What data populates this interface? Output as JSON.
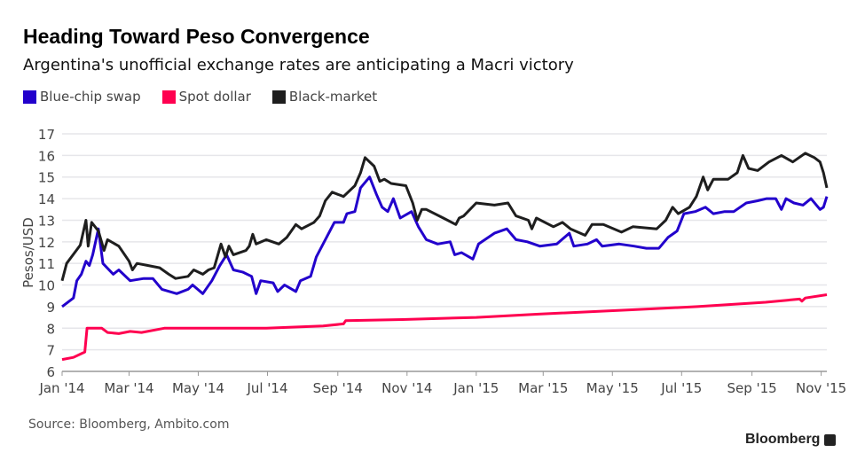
{
  "chart_data": {
    "type": "line",
    "title": "Heading Toward Peso Convergence",
    "subtitle": "Argentina's unofficial exchange rates are anticipating a Macri victory",
    "ylabel": "Pesos/USD",
    "xlabel": "",
    "x_unit": "days since Jan 1 2014",
    "ylim": [
      6,
      17
    ],
    "xlim": [
      0,
      674
    ],
    "grid": true,
    "legend_position": "top-left",
    "yticks": [
      6,
      7,
      8,
      9,
      10,
      11,
      12,
      13,
      14,
      15,
      16,
      17
    ],
    "xticks": [
      {
        "day": 0,
        "label": "Jan '14"
      },
      {
        "day": 59,
        "label": "Mar '14"
      },
      {
        "day": 120,
        "label": "May '14"
      },
      {
        "day": 181,
        "label": "Jul '14"
      },
      {
        "day": 243,
        "label": "Sep '14"
      },
      {
        "day": 304,
        "label": "Nov '14"
      },
      {
        "day": 365,
        "label": "Jan '15"
      },
      {
        "day": 424,
        "label": "Mar '15"
      },
      {
        "day": 485,
        "label": "May '15"
      },
      {
        "day": 546,
        "label": "Jul '15"
      },
      {
        "day": 608,
        "label": "Sep '15"
      },
      {
        "day": 669,
        "label": "Nov '15"
      }
    ],
    "series": [
      {
        "name": "Blue-chip swap",
        "color": "#2200cc",
        "points": [
          [
            0,
            9.0
          ],
          [
            10,
            9.4
          ],
          [
            13,
            10.2
          ],
          [
            17,
            10.5
          ],
          [
            21,
            11.1
          ],
          [
            24,
            10.9
          ],
          [
            27,
            11.4
          ],
          [
            32,
            12.6
          ],
          [
            36,
            11.0
          ],
          [
            45,
            10.5
          ],
          [
            50,
            10.7
          ],
          [
            60,
            10.2
          ],
          [
            72,
            10.3
          ],
          [
            80,
            10.3
          ],
          [
            88,
            9.8
          ],
          [
            101,
            9.6
          ],
          [
            111,
            9.8
          ],
          [
            115,
            10.0
          ],
          [
            124,
            9.6
          ],
          [
            132,
            10.2
          ],
          [
            139,
            10.9
          ],
          [
            145,
            11.4
          ],
          [
            151,
            10.7
          ],
          [
            159,
            10.6
          ],
          [
            167,
            10.4
          ],
          [
            171,
            9.6
          ],
          [
            175,
            10.2
          ],
          [
            186,
            10.1
          ],
          [
            190,
            9.7
          ],
          [
            196,
            10.0
          ],
          [
            206,
            9.7
          ],
          [
            210,
            10.2
          ],
          [
            219,
            10.4
          ],
          [
            224,
            11.3
          ],
          [
            232,
            12.1
          ],
          [
            240,
            12.9
          ],
          [
            248,
            12.9
          ],
          [
            251,
            13.3
          ],
          [
            258,
            13.4
          ],
          [
            263,
            14.5
          ],
          [
            271,
            15.0
          ],
          [
            277,
            14.2
          ],
          [
            282,
            13.6
          ],
          [
            287,
            13.4
          ],
          [
            292,
            14.0
          ],
          [
            298,
            13.1
          ],
          [
            308,
            13.4
          ],
          [
            314,
            12.7
          ],
          [
            321,
            12.1
          ],
          [
            331,
            11.9
          ],
          [
            342,
            12.0
          ],
          [
            346,
            11.4
          ],
          [
            352,
            11.5
          ],
          [
            362,
            11.2
          ],
          [
            367,
            11.9
          ],
          [
            381,
            12.4
          ],
          [
            392,
            12.6
          ],
          [
            400,
            12.1
          ],
          [
            410,
            12.0
          ],
          [
            421,
            11.8
          ],
          [
            436,
            11.9
          ],
          [
            447,
            12.4
          ],
          [
            451,
            11.8
          ],
          [
            463,
            11.9
          ],
          [
            471,
            12.1
          ],
          [
            476,
            11.8
          ],
          [
            491,
            11.9
          ],
          [
            504,
            11.8
          ],
          [
            515,
            11.7
          ],
          [
            526,
            11.7
          ],
          [
            534,
            12.2
          ],
          [
            542,
            12.5
          ],
          [
            548,
            13.3
          ],
          [
            558,
            13.4
          ],
          [
            567,
            13.6
          ],
          [
            574,
            13.3
          ],
          [
            584,
            13.4
          ],
          [
            592,
            13.4
          ],
          [
            603,
            13.8
          ],
          [
            613,
            13.9
          ],
          [
            621,
            14.0
          ],
          [
            629,
            14.0
          ],
          [
            634,
            13.5
          ],
          [
            638,
            14.0
          ],
          [
            645,
            13.8
          ],
          [
            653,
            13.7
          ],
          [
            660,
            14.0
          ],
          [
            668,
            13.5
          ],
          [
            671,
            13.6
          ],
          [
            674,
            14.1
          ]
        ]
      },
      {
        "name": "Spot dollar",
        "color": "#ff0050",
        "points": [
          [
            0,
            6.55
          ],
          [
            10,
            6.65
          ],
          [
            20,
            6.9
          ],
          [
            22,
            8.0
          ],
          [
            35,
            8.0
          ],
          [
            40,
            7.8
          ],
          [
            50,
            7.75
          ],
          [
            60,
            7.85
          ],
          [
            70,
            7.8
          ],
          [
            90,
            8.0
          ],
          [
            180,
            8.0
          ],
          [
            230,
            8.1
          ],
          [
            248,
            8.2
          ],
          [
            250,
            8.35
          ],
          [
            300,
            8.4
          ],
          [
            365,
            8.5
          ],
          [
            420,
            8.65
          ],
          [
            500,
            8.85
          ],
          [
            560,
            9.0
          ],
          [
            620,
            9.2
          ],
          [
            650,
            9.35
          ],
          [
            652,
            9.25
          ],
          [
            655,
            9.4
          ],
          [
            674,
            9.55
          ]
        ]
      },
      {
        "name": "Black-market",
        "color": "#1e1e1e",
        "points": [
          [
            0,
            10.2
          ],
          [
            4,
            11.0
          ],
          [
            16,
            11.85
          ],
          [
            21,
            13.0
          ],
          [
            23,
            11.8
          ],
          [
            26,
            12.9
          ],
          [
            32,
            12.5
          ],
          [
            37,
            11.6
          ],
          [
            40,
            12.1
          ],
          [
            50,
            11.8
          ],
          [
            59,
            11.1
          ],
          [
            62,
            10.7
          ],
          [
            66,
            11.0
          ],
          [
            76,
            10.9
          ],
          [
            86,
            10.8
          ],
          [
            94,
            10.5
          ],
          [
            100,
            10.3
          ],
          [
            111,
            10.4
          ],
          [
            116,
            10.7
          ],
          [
            124,
            10.5
          ],
          [
            129,
            10.7
          ],
          [
            134,
            10.8
          ],
          [
            140,
            11.9
          ],
          [
            144,
            11.3
          ],
          [
            147,
            11.8
          ],
          [
            151,
            11.4
          ],
          [
            162,
            11.6
          ],
          [
            165,
            11.8
          ],
          [
            168,
            12.35
          ],
          [
            171,
            11.9
          ],
          [
            180,
            12.1
          ],
          [
            191,
            11.9
          ],
          [
            198,
            12.2
          ],
          [
            206,
            12.8
          ],
          [
            211,
            12.6
          ],
          [
            222,
            12.9
          ],
          [
            227,
            13.2
          ],
          [
            232,
            13.9
          ],
          [
            238,
            14.3
          ],
          [
            248,
            14.1
          ],
          [
            258,
            14.6
          ],
          [
            263,
            15.2
          ],
          [
            267,
            15.9
          ],
          [
            275,
            15.5
          ],
          [
            280,
            14.8
          ],
          [
            284,
            14.9
          ],
          [
            290,
            14.7
          ],
          [
            303,
            14.6
          ],
          [
            309,
            13.8
          ],
          [
            313,
            13.0
          ],
          [
            317,
            13.5
          ],
          [
            321,
            13.5
          ],
          [
            336,
            13.1
          ],
          [
            347,
            12.8
          ],
          [
            350,
            13.1
          ],
          [
            354,
            13.2
          ],
          [
            365,
            13.8
          ],
          [
            381,
            13.7
          ],
          [
            393,
            13.8
          ],
          [
            400,
            13.2
          ],
          [
            411,
            13.0
          ],
          [
            414,
            12.6
          ],
          [
            418,
            13.1
          ],
          [
            433,
            12.7
          ],
          [
            441,
            12.9
          ],
          [
            448,
            12.6
          ],
          [
            461,
            12.3
          ],
          [
            467,
            12.8
          ],
          [
            477,
            12.8
          ],
          [
            493,
            12.45
          ],
          [
            503,
            12.7
          ],
          [
            524,
            12.6
          ],
          [
            532,
            13.0
          ],
          [
            538,
            13.6
          ],
          [
            543,
            13.3
          ],
          [
            553,
            13.6
          ],
          [
            559,
            14.1
          ],
          [
            565,
            15.0
          ],
          [
            569,
            14.4
          ],
          [
            574,
            14.9
          ],
          [
            587,
            14.9
          ],
          [
            595,
            15.2
          ],
          [
            600,
            16.0
          ],
          [
            605,
            15.4
          ],
          [
            613,
            15.3
          ],
          [
            623,
            15.7
          ],
          [
            634,
            16.0
          ],
          [
            644,
            15.7
          ],
          [
            655,
            16.1
          ],
          [
            663,
            15.9
          ],
          [
            668,
            15.7
          ],
          [
            671,
            15.2
          ],
          [
            674,
            14.5
          ]
        ]
      }
    ]
  },
  "source": "Source: Bloomberg, Ambito.com",
  "brand": "Bloomberg"
}
